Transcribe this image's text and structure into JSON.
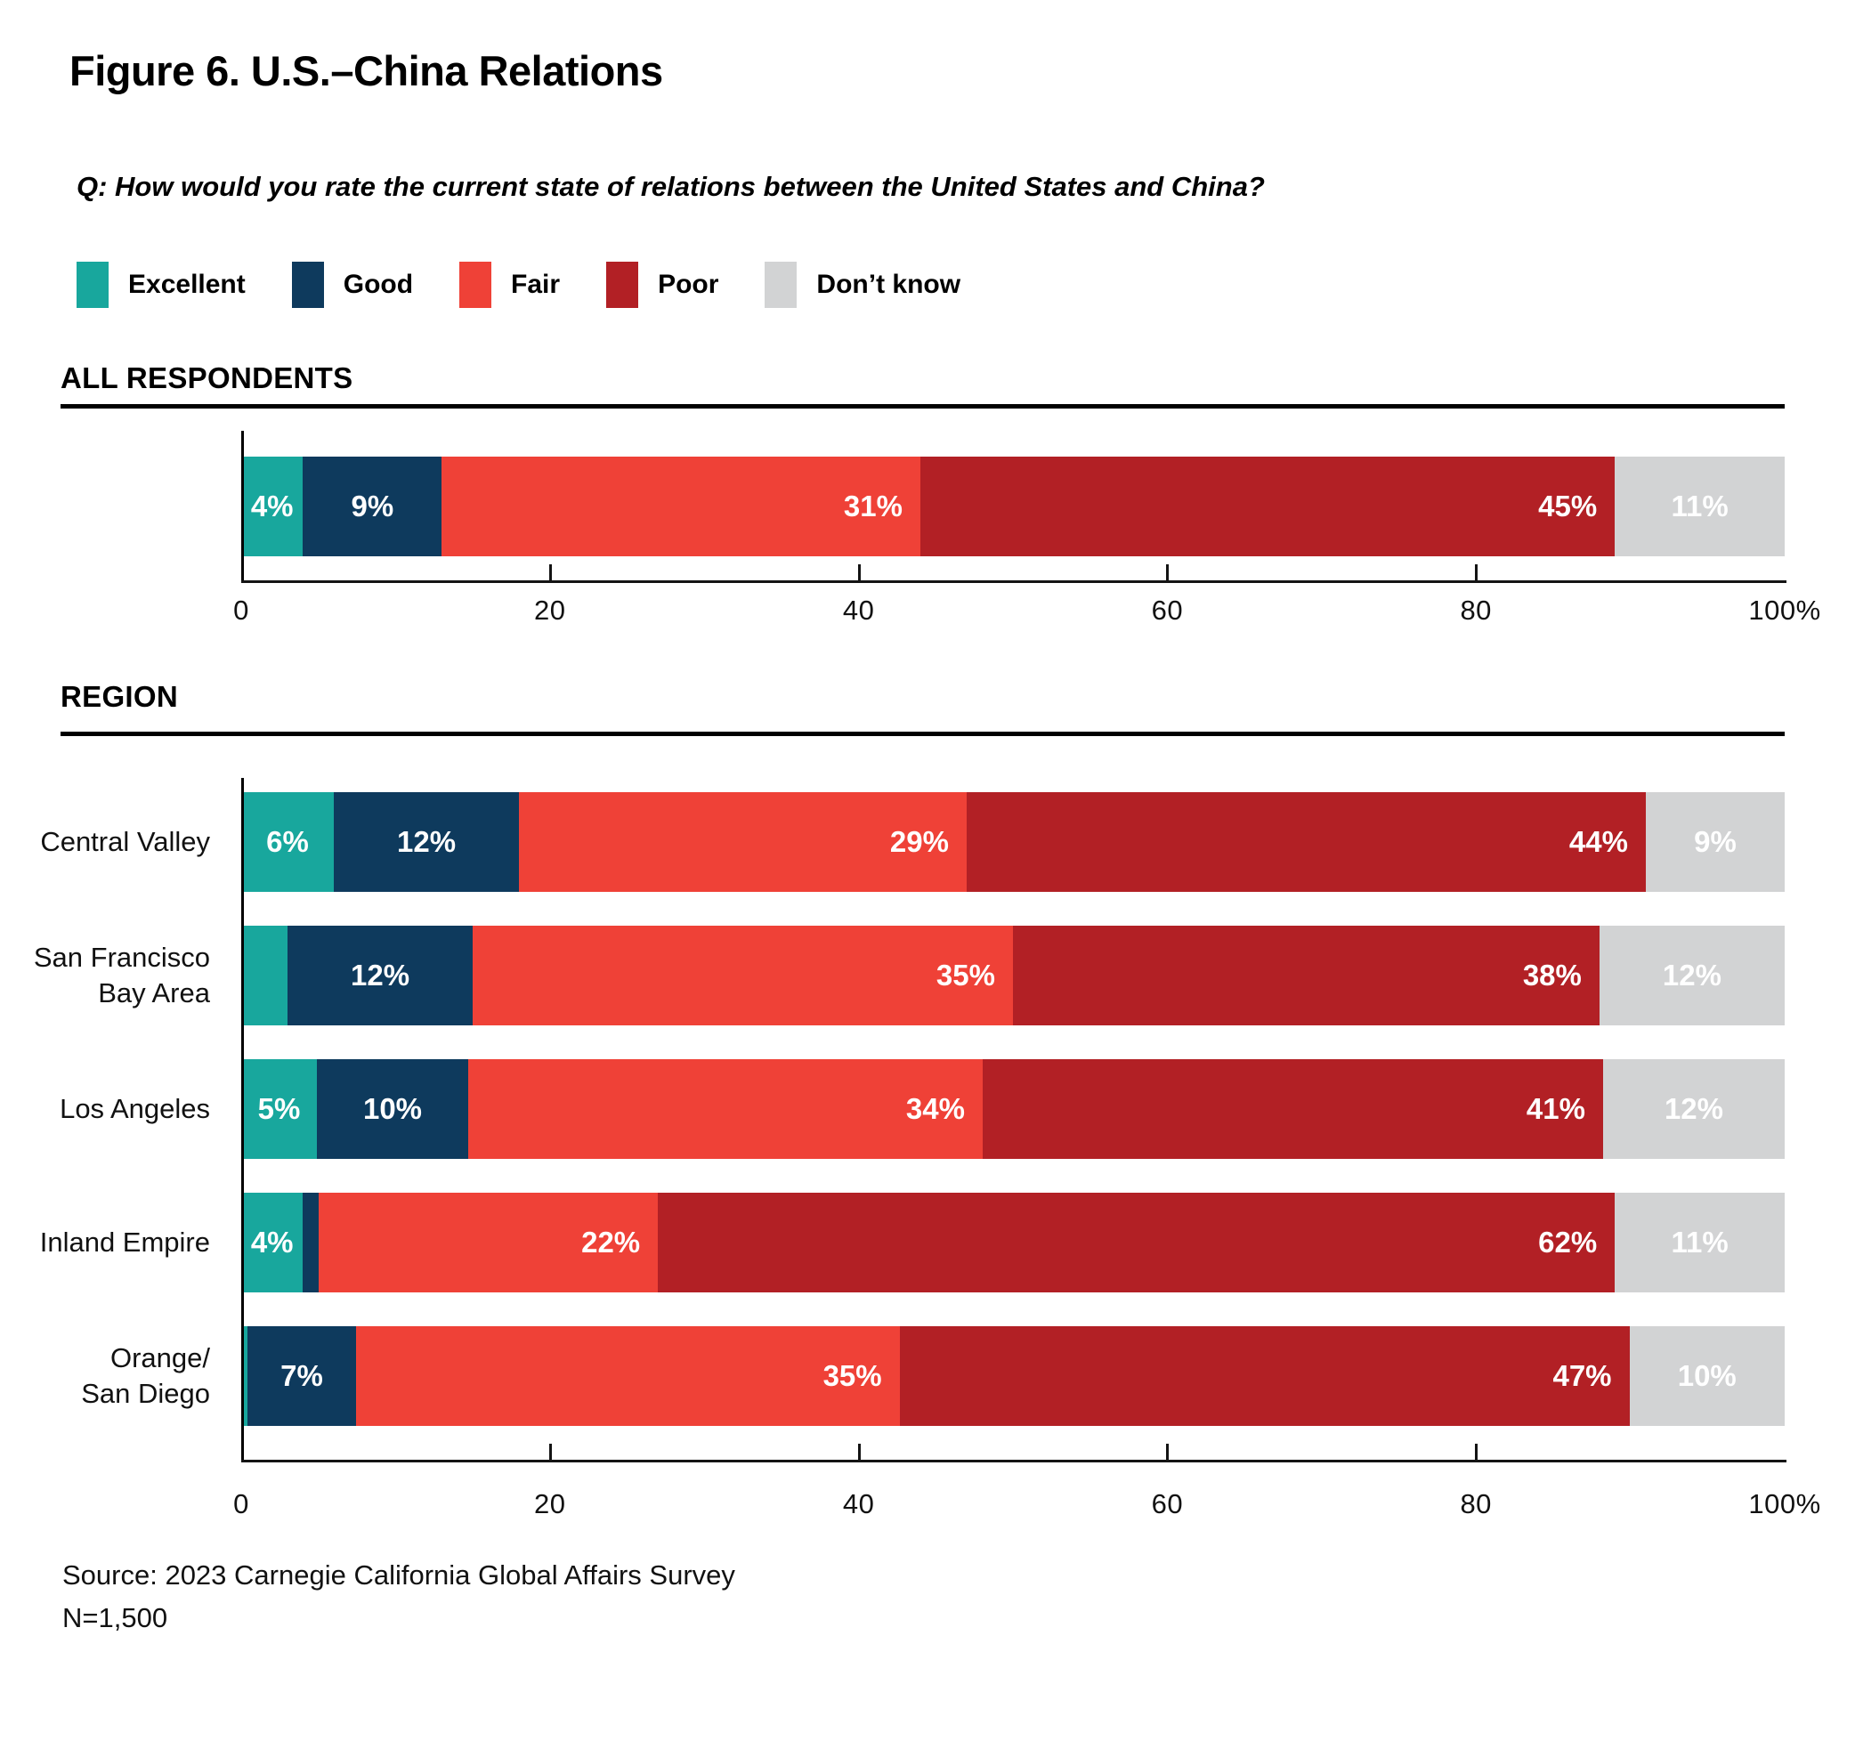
{
  "figure": {
    "title": "Figure 6. U.S.–China Relations",
    "question": "Q: How would you rate the current state of relations between the United States and China?",
    "source_line1": "Source: 2023 Carnegie California Global Affairs Survey",
    "source_line2": "N=1,500"
  },
  "legend": [
    {
      "label": "Excellent",
      "color": "#18A79D"
    },
    {
      "label": "Good",
      "color": "#0E3A5D"
    },
    {
      "label": "Fair",
      "color": "#EF4137"
    },
    {
      "label": "Poor",
      "color": "#B22025"
    },
    {
      "label": "Don’t know",
      "color": "#D2D3D4"
    }
  ],
  "chart_data": {
    "type": "bar",
    "orientation": "horizontal",
    "stacked": true,
    "unit": "%",
    "title": "Figure 6. U.S.–China Relations",
    "legend_position": "top",
    "series_names": [
      "Excellent",
      "Good",
      "Fair",
      "Poor",
      "Don't know"
    ],
    "axis": {
      "min": 0,
      "max": 100,
      "tick_values": [
        0,
        20,
        40,
        60,
        80,
        100
      ],
      "tick_labels": [
        "0",
        "20",
        "40",
        "60",
        "80",
        "100%"
      ]
    },
    "sections": [
      {
        "heading": "ALL RESPONDENTS",
        "rows": [
          {
            "category": "",
            "values": [
              4,
              9,
              31,
              45,
              11
            ],
            "labels": [
              "4%",
              "9%",
              "31%",
              "45%",
              "11%"
            ]
          }
        ]
      },
      {
        "heading": "REGION",
        "rows": [
          {
            "category": "Central Valley",
            "values": [
              6,
              12,
              29,
              44,
              9
            ],
            "labels": [
              "6%",
              "12%",
              "29%",
              "44%",
              "9%"
            ]
          },
          {
            "category": "San Francisco\nBay Area",
            "values": [
              3,
              12,
              35,
              38,
              12
            ],
            "labels": [
              "",
              "12%",
              "35%",
              "38%",
              "12%"
            ]
          },
          {
            "category": "Los Angeles",
            "values": [
              5,
              10,
              34,
              41,
              12
            ],
            "labels": [
              "5%",
              "10%",
              "34%",
              "41%",
              "12%"
            ]
          },
          {
            "category": "Inland Empire",
            "values": [
              4,
              1,
              22,
              62,
              11
            ],
            "labels": [
              "4%",
              "",
              "22%",
              "62%",
              "11%"
            ]
          },
          {
            "category": "Orange/\nSan Diego",
            "values": [
              0.4,
              7,
              35,
              47,
              10
            ],
            "labels": [
              "",
              "7%",
              "35%",
              "47%",
              "10%"
            ]
          }
        ]
      }
    ]
  }
}
